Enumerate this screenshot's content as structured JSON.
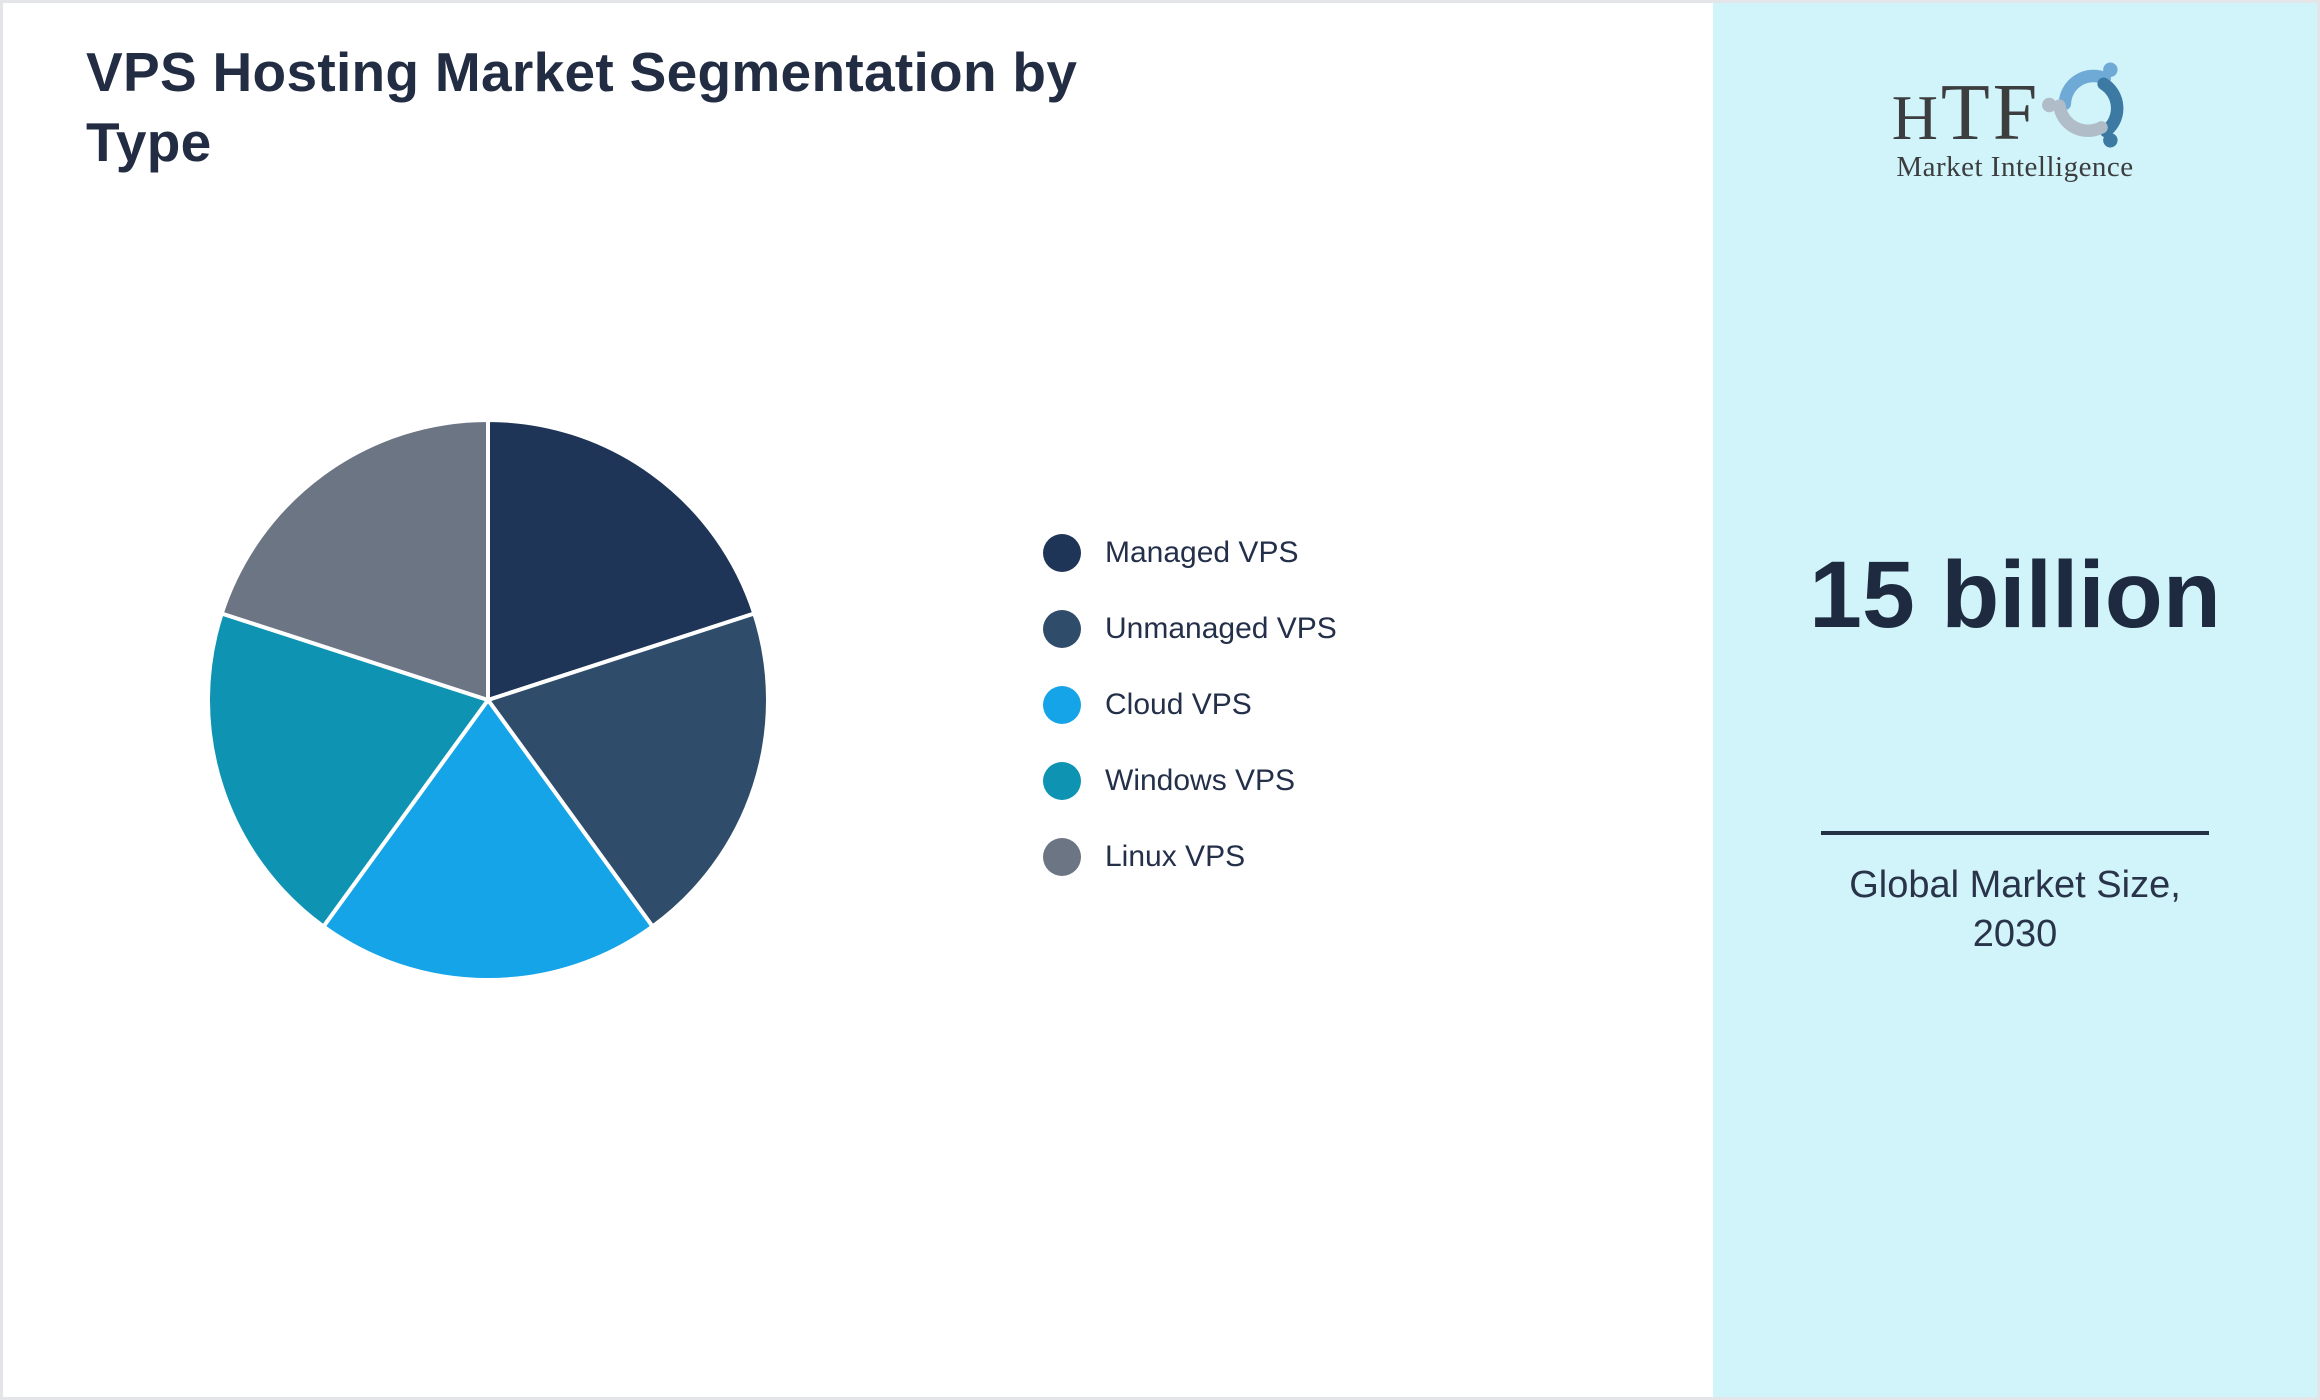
{
  "chart_data": {
    "type": "pie",
    "title": "VPS Hosting Market Segmentation by Type",
    "categories": [
      "Managed VPS",
      "Unmanaged VPS",
      "Cloud VPS",
      "Windows VPS",
      "Linux VPS"
    ],
    "values": [
      20,
      20,
      20,
      20,
      20
    ],
    "colors": [
      "#1F3557",
      "#2F4D6B",
      "#16A4E8",
      "#0E93B2",
      "#6C7584"
    ],
    "start_angle_deg": 0,
    "direction": "clockwise",
    "slice_border_color": "#FFFFFF",
    "legend_position": "right",
    "data_labels": false
  },
  "sidebar": {
    "background_color": "#D1F3FA",
    "logo_text": "HTF",
    "logo_subtext": "Market Intelligence",
    "logo_colors": [
      "#6FA9D6",
      "#3C79A3",
      "#B0BDC8"
    ],
    "stat_value": "15 billion",
    "stat_label": "Global Market Size, 2030"
  }
}
